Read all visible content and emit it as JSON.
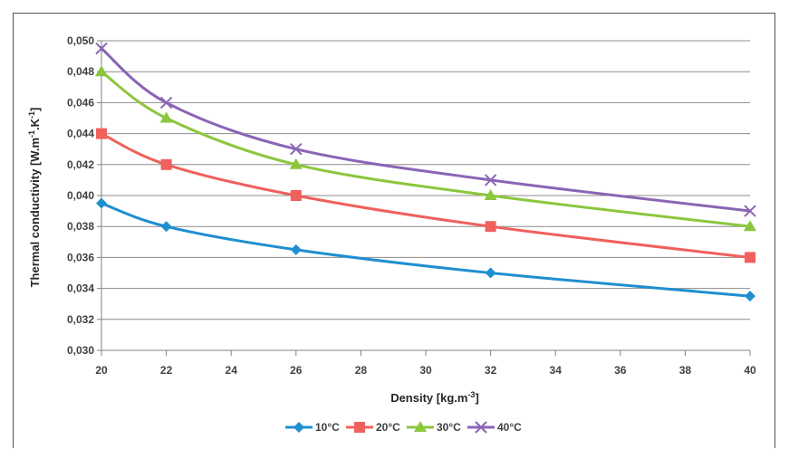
{
  "chart_data": {
    "type": "line",
    "title": "",
    "xlabel": "Density [kg.m",
    "xlabel_sup": "-3",
    "xlabel_end": "]",
    "ylabel": "Thermal conductivity [W.m",
    "ylabel_sup1": "-1",
    "ylabel_mid": ".K",
    "ylabel_sup2": "-1",
    "ylabel_end": "]",
    "xlim": [
      20,
      40
    ],
    "ylim": [
      0.03,
      0.05
    ],
    "x_ticks": [
      "20",
      "22",
      "24",
      "26",
      "28",
      "30",
      "32",
      "34",
      "36",
      "38",
      "40"
    ],
    "x_tick_values": [
      20,
      22,
      24,
      26,
      28,
      30,
      32,
      34,
      36,
      38,
      40
    ],
    "y_ticks": [
      "0,030",
      "0,032",
      "0,034",
      "0,036",
      "0,038",
      "0,040",
      "0,042",
      "0,044",
      "0,046",
      "0,048",
      "0,050"
    ],
    "y_tick_values": [
      0.03,
      0.032,
      0.034,
      0.036,
      0.038,
      0.04,
      0.042,
      0.044,
      0.046,
      0.048,
      0.05
    ],
    "grid": "horizontal",
    "legend_position": "bottom",
    "x": [
      20,
      22,
      26,
      32,
      40
    ],
    "series": [
      {
        "name": "10°C",
        "color": "#1f8fd0",
        "marker": "diamond",
        "values": [
          0.0395,
          0.038,
          0.0365,
          0.035,
          0.0335
        ]
      },
      {
        "name": "20°C",
        "color": "#f0605d",
        "marker": "square",
        "values": [
          0.044,
          0.042,
          0.04,
          0.038,
          0.036
        ]
      },
      {
        "name": "30°C",
        "color": "#8cc63e",
        "marker": "triangle",
        "values": [
          0.048,
          0.045,
          0.042,
          0.04,
          0.038
        ]
      },
      {
        "name": "40°C",
        "color": "#8a65b5",
        "marker": "cross",
        "values": [
          0.0495,
          0.046,
          0.043,
          0.041,
          0.039
        ]
      }
    ]
  }
}
